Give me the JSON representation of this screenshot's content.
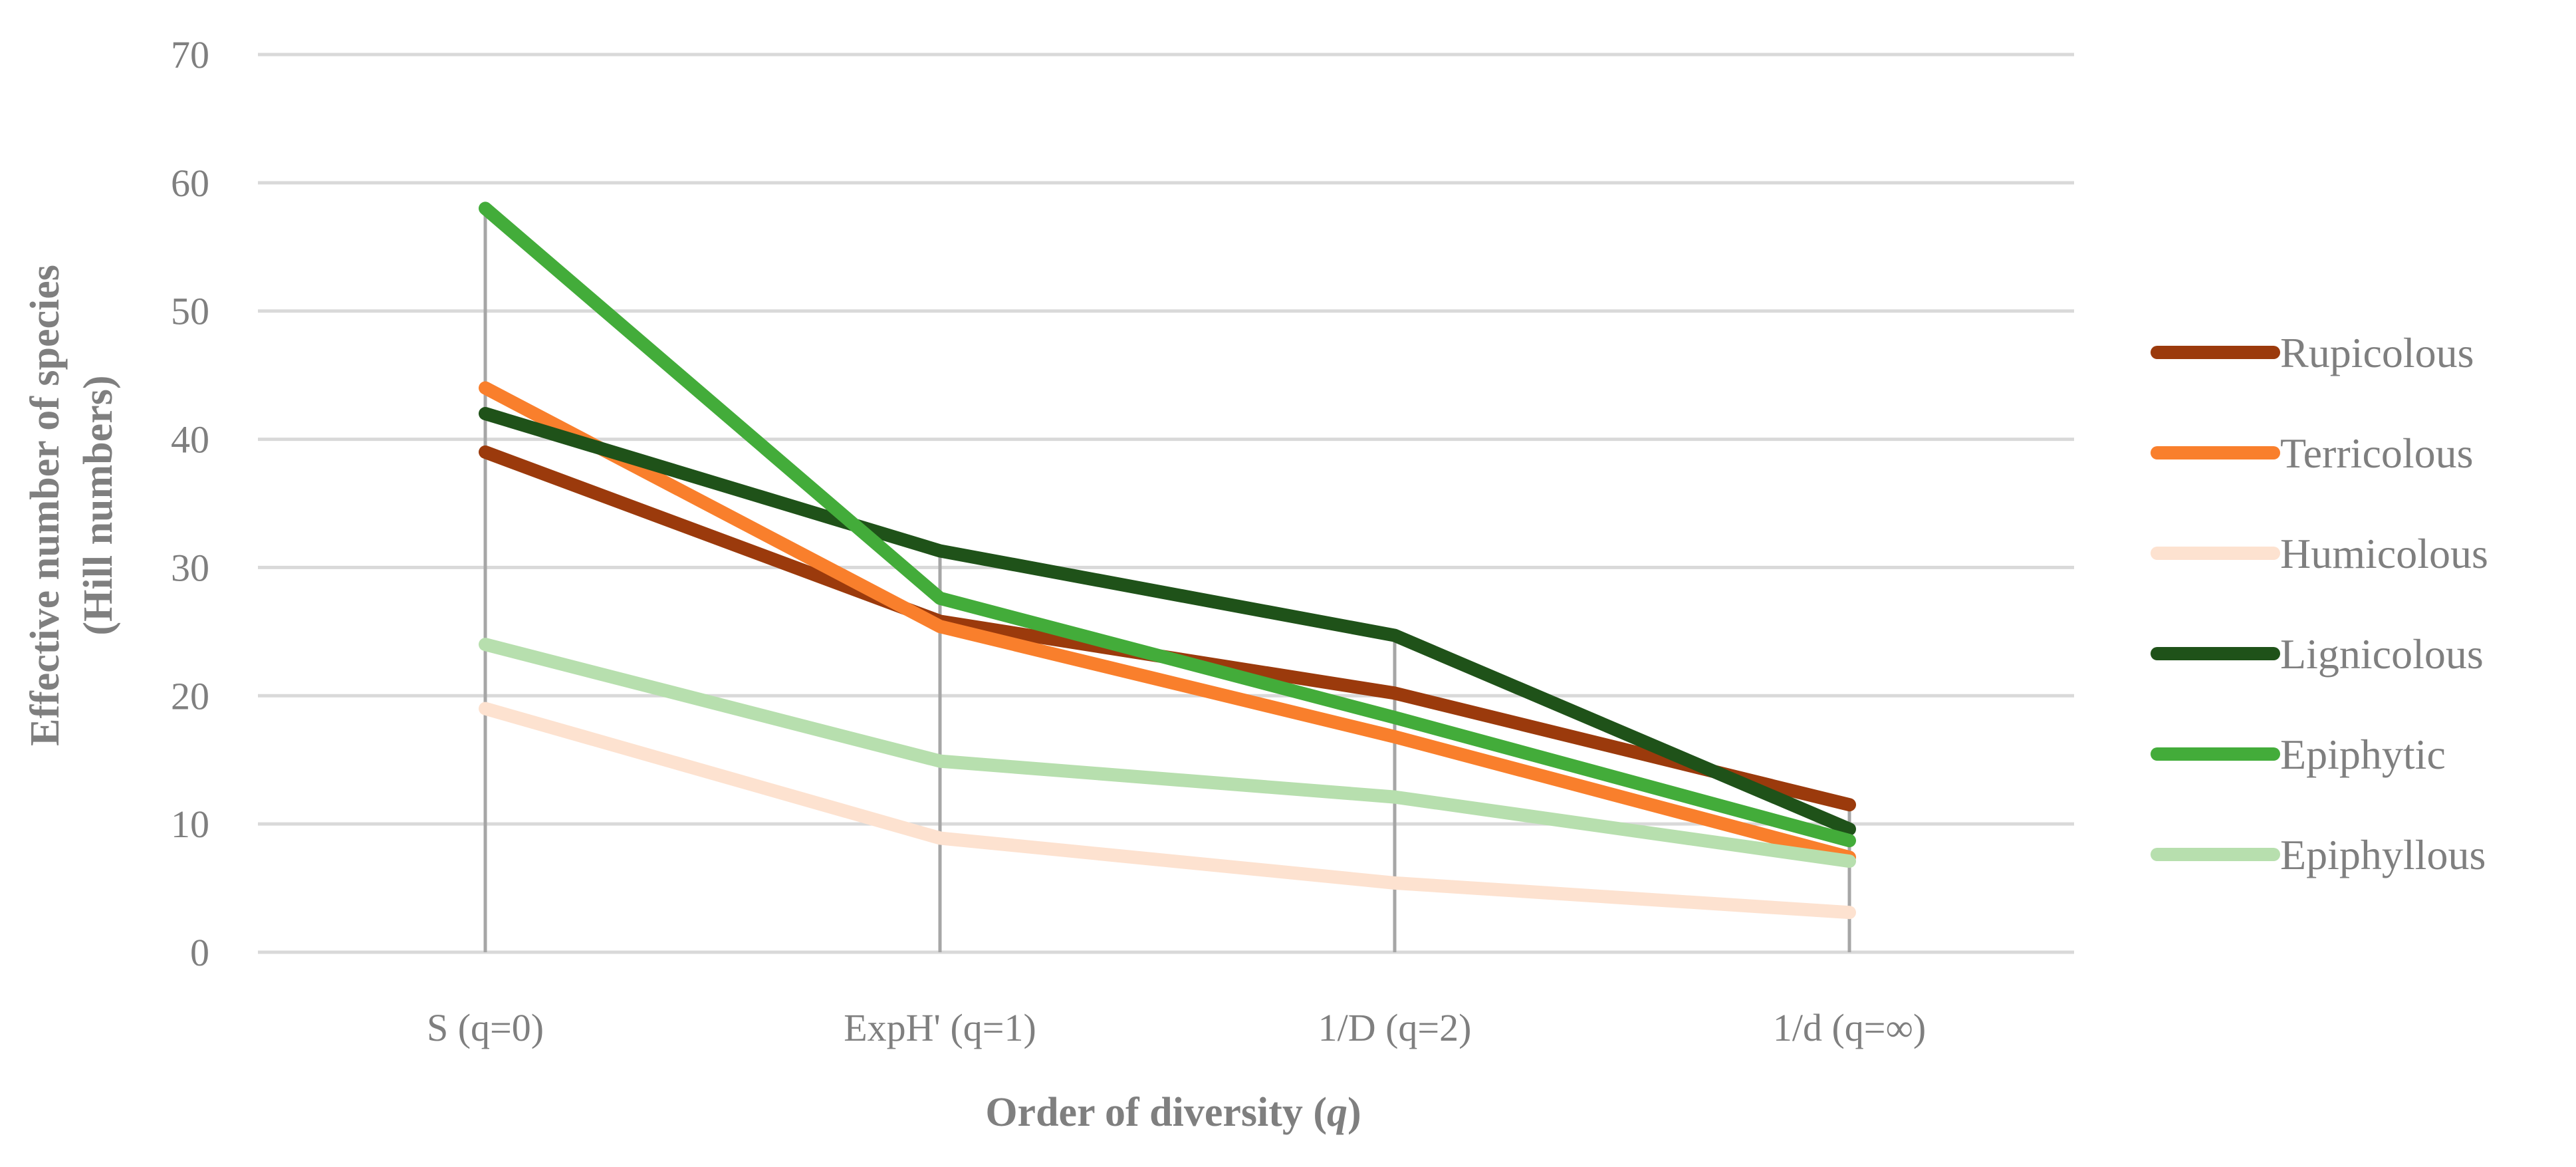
{
  "chart_data": {
    "type": "line",
    "title": "",
    "xlabel_main": "Order of diversity (",
    "xlabel_italic": "q",
    "xlabel_close": ")",
    "ylabel_line1": "Effective number of species",
    "ylabel_line2": "(Hill numbers)",
    "ylim": [
      0,
      70
    ],
    "yticks": [
      0,
      10,
      20,
      30,
      40,
      50,
      60,
      70
    ],
    "grid": true,
    "legend_position": "right",
    "categories": [
      "S (q=0)",
      "ExpH' (q=1)",
      "1/D (q=2)",
      "1/d (q=∞)"
    ],
    "series": [
      {
        "name": "Rupicolous",
        "color": "#9b3a0c",
        "values": [
          39,
          25.8,
          20.2,
          11.5
        ]
      },
      {
        "name": "Terricolous",
        "color": "#f97f2c",
        "values": [
          44,
          25.4,
          16.8,
          7.4
        ]
      },
      {
        "name": "Humicolous",
        "color": "#fde2d0",
        "values": [
          19,
          8.9,
          5.4,
          3.1
        ]
      },
      {
        "name": "Lignicolous",
        "color": "#1f5219",
        "values": [
          42,
          31.3,
          24.7,
          9.6
        ]
      },
      {
        "name": "Epiphytic",
        "color": "#43ac3a",
        "values": [
          58,
          27.6,
          18.3,
          8.7
        ]
      },
      {
        "name": "Epiphyllous",
        "color": "#b7dfae",
        "values": [
          24,
          14.9,
          12.1,
          7.1
        ]
      }
    ],
    "drop_line_color": "#a6a6a6",
    "grid_color": "#d9d9d9"
  }
}
